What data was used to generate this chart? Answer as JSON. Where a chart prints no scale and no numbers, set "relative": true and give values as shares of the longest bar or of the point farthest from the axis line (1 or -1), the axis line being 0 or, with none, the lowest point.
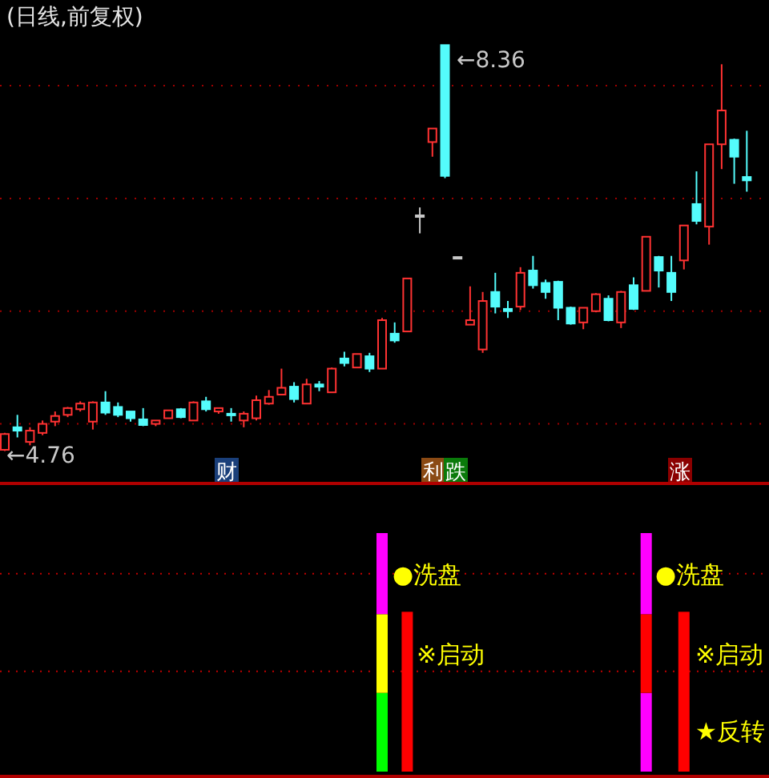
{
  "chart_data": [
    {
      "type": "candlestick",
      "title": "(日线,前复权)",
      "categories": [
        null,
        null,
        null,
        null,
        null,
        null,
        null,
        null,
        null,
        null,
        null,
        null,
        null,
        null,
        null,
        null,
        null,
        null,
        null,
        null,
        null,
        null,
        null,
        null,
        null,
        null,
        null,
        null,
        null,
        null,
        null,
        null,
        null,
        null,
        null,
        null,
        null,
        null,
        null,
        null,
        null,
        null,
        null,
        null,
        null,
        null,
        null,
        null,
        null,
        null,
        null,
        null,
        null,
        null,
        null,
        null,
        null,
        null,
        null,
        null
      ],
      "ohlc": [
        [
          4.77,
          4.92,
          4.76,
          4.91
        ],
        [
          4.97,
          5.08,
          4.88,
          4.94
        ],
        [
          4.84,
          4.97,
          4.81,
          4.94
        ],
        [
          4.92,
          5.03,
          4.9,
          5.0
        ],
        [
          5.02,
          5.11,
          4.98,
          5.07
        ],
        [
          5.08,
          5.15,
          5.06,
          5.14
        ],
        [
          5.13,
          5.2,
          5.11,
          5.18
        ],
        [
          5.02,
          5.2,
          4.95,
          5.19
        ],
        [
          5.19,
          5.29,
          5.08,
          5.1
        ],
        [
          5.15,
          5.19,
          5.06,
          5.08
        ],
        [
          5.11,
          5.11,
          5.02,
          5.05
        ],
        [
          5.04,
          5.14,
          4.98,
          4.99
        ],
        [
          5.0,
          5.03,
          4.98,
          5.03
        ],
        [
          5.05,
          5.12,
          5.05,
          5.12
        ],
        [
          5.13,
          5.14,
          5.05,
          5.06
        ],
        [
          5.03,
          5.2,
          5.03,
          5.19
        ],
        [
          5.2,
          5.24,
          5.11,
          5.13
        ],
        [
          5.11,
          5.14,
          5.09,
          5.14
        ],
        [
          5.09,
          5.14,
          5.02,
          5.08
        ],
        [
          5.03,
          5.11,
          4.97,
          5.09
        ],
        [
          5.05,
          5.25,
          5.03,
          5.21
        ],
        [
          5.18,
          5.3,
          5.17,
          5.24
        ],
        [
          5.26,
          5.49,
          5.26,
          5.32
        ],
        [
          5.33,
          5.37,
          5.19,
          5.22
        ],
        [
          5.18,
          5.4,
          5.18,
          5.35
        ],
        [
          5.35,
          5.38,
          5.29,
          5.33
        ],
        [
          5.28,
          5.5,
          5.28,
          5.49
        ],
        [
          5.58,
          5.64,
          5.51,
          5.54
        ],
        [
          5.5,
          5.62,
          5.5,
          5.62
        ],
        [
          5.6,
          5.63,
          5.46,
          5.49
        ],
        [
          5.49,
          5.94,
          5.49,
          5.92
        ],
        [
          5.8,
          5.9,
          5.72,
          5.74
        ],
        [
          5.82,
          6.29,
          5.82,
          6.29
        ],
        [
          6.85,
          6.92,
          6.69,
          6.85
        ],
        [
          7.5,
          7.62,
          7.37,
          7.62
        ],
        [
          8.36,
          8.36,
          7.18,
          7.2
        ],
        [
          6.48,
          6.48,
          6.48,
          6.48
        ],
        [
          5.88,
          6.22,
          5.88,
          5.92
        ],
        [
          5.66,
          6.17,
          5.63,
          6.09
        ],
        [
          6.17,
          6.34,
          5.98,
          6.04
        ],
        [
          6.02,
          6.09,
          5.94,
          6.0
        ],
        [
          6.04,
          6.39,
          6.01,
          6.34
        ],
        [
          6.36,
          6.49,
          6.2,
          6.23
        ],
        [
          6.25,
          6.28,
          6.11,
          6.17
        ],
        [
          6.26,
          6.27,
          5.92,
          6.03
        ],
        [
          6.03,
          6.04,
          5.88,
          5.89
        ],
        [
          5.9,
          6.03,
          5.84,
          6.03
        ],
        [
          6.0,
          6.16,
          5.99,
          6.15
        ],
        [
          6.11,
          6.14,
          5.91,
          5.92
        ],
        [
          5.9,
          6.18,
          5.85,
          6.17
        ],
        [
          6.23,
          6.3,
          6.01,
          6.02
        ],
        [
          6.18,
          6.66,
          6.18,
          6.66
        ],
        [
          6.48,
          6.49,
          6.21,
          6.36
        ],
        [
          6.34,
          6.49,
          6.09,
          6.17
        ],
        [
          6.45,
          6.76,
          6.37,
          6.76
        ],
        [
          6.95,
          7.24,
          6.77,
          6.8
        ],
        [
          6.75,
          7.48,
          6.59,
          7.48
        ],
        [
          7.48,
          8.19,
          7.26,
          7.78
        ],
        [
          7.52,
          7.53,
          7.13,
          7.37
        ],
        [
          7.19,
          7.6,
          7.06,
          7.16
        ]
      ],
      "colors": [
        "#ff3232",
        "#54fcfc",
        "#ff3232",
        "#ff3232",
        "#ff3232",
        "#ff3232",
        "#ff3232",
        "#ff3232",
        "#54fcfc",
        "#54fcfc",
        "#54fcfc",
        "#54fcfc",
        "#ff3232",
        "#ff3232",
        "#54fcfc",
        "#ff3232",
        "#54fcfc",
        "#ff3232",
        "#54fcfc",
        "#ff3232",
        "#ff3232",
        "#ff3232",
        "#ff3232",
        "#54fcfc",
        "#ff3232",
        "#54fcfc",
        "#ff3232",
        "#54fcfc",
        "#ff3232",
        "#54fcfc",
        "#ff3232",
        "#54fcfc",
        "#ff3232",
        "#c8c8c8",
        "#ff3232",
        "#54fcfc",
        "#c8c8c8",
        "#ff3232",
        "#ff3232",
        "#54fcfc",
        "#54fcfc",
        "#ff3232",
        "#54fcfc",
        "#54fcfc",
        "#54fcfc",
        "#54fcfc",
        "#ff3232",
        "#ff3232",
        "#54fcfc",
        "#ff3232",
        "#54fcfc",
        "#ff3232",
        "#54fcfc",
        "#54fcfc",
        "#ff3232",
        "#54fcfc",
        "#ff3232",
        "#ff3232",
        "#54fcfc",
        "#54fcfc"
      ],
      "ylim": [
        4.5,
        8.76
      ],
      "yticks": [
        {
          "value": 5,
          "label": null
        },
        {
          "value": 6,
          "label": null
        },
        {
          "value": 7,
          "label": null
        },
        {
          "value": 8,
          "label": null
        }
      ],
      "grid": "y",
      "annotations": [
        "←4.76",
        "←8.36",
        "财",
        "利",
        "跌",
        "涨"
      ]
    },
    {
      "type": "bar",
      "stacked": true,
      "relative": true,
      "categories": [
        null,
        null,
        null,
        null,
        null,
        null,
        null,
        null,
        null,
        null,
        null,
        null,
        null,
        null,
        null,
        null,
        null,
        null,
        null,
        null,
        null,
        null,
        null,
        null,
        null,
        null,
        null,
        null,
        null,
        null,
        null,
        null,
        null,
        null,
        null,
        null,
        null,
        null,
        null,
        null,
        null,
        null,
        null,
        null,
        null,
        null,
        null,
        null,
        null,
        null,
        null,
        null,
        null,
        null,
        null,
        null,
        null,
        null,
        null,
        null
      ],
      "series": [
        {
          "values": [
            null,
            null,
            null,
            null,
            null,
            null,
            null,
            null,
            null,
            null,
            null,
            null,
            null,
            null,
            null,
            null,
            null,
            null,
            null,
            null,
            null,
            null,
            null,
            null,
            null,
            null,
            null,
            null,
            null,
            null,
            0.33,
            null,
            0.67,
            null,
            null,
            null,
            null,
            null,
            null,
            null,
            null,
            null,
            null,
            null,
            null,
            null,
            null,
            null,
            null,
            null,
            null,
            0.33,
            null,
            null,
            0.67,
            null,
            null,
            null,
            null,
            null
          ],
          "colors": [
            null,
            null,
            null,
            null,
            null,
            null,
            null,
            null,
            null,
            null,
            null,
            null,
            null,
            null,
            null,
            null,
            null,
            null,
            null,
            null,
            null,
            null,
            null,
            null,
            null,
            null,
            null,
            null,
            null,
            null,
            "#00ff00",
            null,
            "#ff0000",
            null,
            null,
            null,
            null,
            null,
            null,
            null,
            null,
            null,
            null,
            null,
            null,
            null,
            null,
            null,
            null,
            null,
            null,
            "#ff00ff",
            null,
            null,
            "#ff0000",
            null,
            null,
            null,
            null,
            null
          ]
        },
        {
          "values": [
            null,
            null,
            null,
            null,
            null,
            null,
            null,
            null,
            null,
            null,
            null,
            null,
            null,
            null,
            null,
            null,
            null,
            null,
            null,
            null,
            null,
            null,
            null,
            null,
            null,
            null,
            null,
            null,
            null,
            null,
            0.33,
            null,
            null,
            null,
            null,
            null,
            null,
            null,
            null,
            null,
            null,
            null,
            null,
            null,
            null,
            null,
            null,
            null,
            null,
            null,
            null,
            0.33,
            null,
            null,
            null,
            null,
            null,
            null,
            null,
            null
          ],
          "colors": [
            null,
            null,
            null,
            null,
            null,
            null,
            null,
            null,
            null,
            null,
            null,
            null,
            null,
            null,
            null,
            null,
            null,
            null,
            null,
            null,
            null,
            null,
            null,
            null,
            null,
            null,
            null,
            null,
            null,
            null,
            "#ffff00",
            null,
            null,
            null,
            null,
            null,
            null,
            null,
            null,
            null,
            null,
            null,
            null,
            null,
            null,
            null,
            null,
            null,
            null,
            null,
            null,
            "#ff0000",
            null,
            null,
            null,
            null,
            null,
            null,
            null,
            null
          ]
        },
        {
          "values": [
            null,
            null,
            null,
            null,
            null,
            null,
            null,
            null,
            null,
            null,
            null,
            null,
            null,
            null,
            null,
            null,
            null,
            null,
            null,
            null,
            null,
            null,
            null,
            null,
            null,
            null,
            null,
            null,
            null,
            null,
            0.34,
            null,
            null,
            null,
            null,
            null,
            null,
            null,
            null,
            null,
            null,
            null,
            null,
            null,
            null,
            null,
            null,
            null,
            null,
            null,
            null,
            0.34,
            null,
            null,
            null,
            null,
            null,
            null,
            null,
            null
          ],
          "colors": [
            null,
            null,
            null,
            null,
            null,
            null,
            null,
            null,
            null,
            null,
            null,
            null,
            null,
            null,
            null,
            null,
            null,
            null,
            null,
            null,
            null,
            null,
            null,
            null,
            null,
            null,
            null,
            null,
            null,
            null,
            "#ff00ff",
            null,
            null,
            null,
            null,
            null,
            null,
            null,
            null,
            null,
            null,
            null,
            null,
            null,
            null,
            null,
            null,
            null,
            null,
            null,
            null,
            "#ff00ff",
            null,
            null,
            null,
            null,
            null,
            null,
            null,
            null
          ]
        }
      ],
      "ref_lines": [
        {
          "axis": "y",
          "value": 0.83,
          "color": "#c00000",
          "line_style": "dotted"
        },
        {
          "axis": "y",
          "value": 0.42,
          "color": "#c00000",
          "line_style": "dotted"
        }
      ],
      "annotations": [
        "●洗盘",
        "※启动",
        "●洗盘",
        "※启动",
        "★反转"
      ]
    }
  ]
}
